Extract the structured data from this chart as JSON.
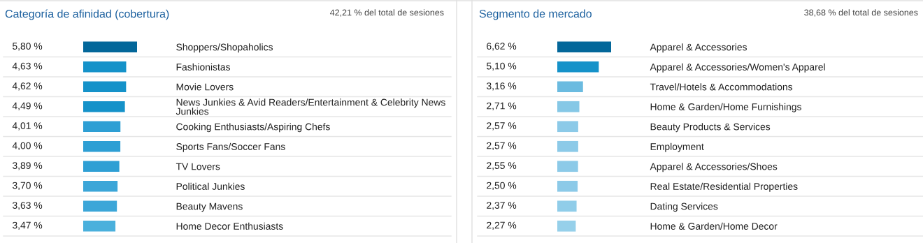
{
  "chart_data": [
    {
      "type": "bar",
      "orientation": "horizontal",
      "title": "Categoría de afinidad (cobertura)",
      "annotations": [
        "42,21 % del total de sesiones"
      ],
      "categories": [
        "Shoppers/Shopaholics",
        "Fashionistas",
        "Movie Lovers",
        "News Junkies & Avid Readers/Entertainment & Celebrity News Junkies",
        "Cooking Enthusiasts/Aspiring Chefs",
        "Sports Fans/Soccer Fans",
        "TV Lovers",
        "Political Junkies",
        "Beauty Mavens",
        "Home Decor Enthusiasts"
      ],
      "values": [
        5.8,
        4.63,
        4.62,
        4.49,
        4.01,
        4.0,
        3.89,
        3.7,
        3.63,
        3.47
      ],
      "value_labels": [
        "5,80 %",
        "4,63 %",
        "4,62 %",
        "4,49 %",
        "4,01 %",
        "4,00 %",
        "3,89 %",
        "3,70 %",
        "3,63 %",
        "3,47 %"
      ],
      "colors": [
        "#03679a",
        "#1592c9",
        "#1592c9",
        "#1592c9",
        "#2e9fd4",
        "#2e9fd4",
        "#2e9fd4",
        "#3ca6d8",
        "#3ca6d8",
        "#4ab0dc"
      ],
      "xlim": [
        0,
        5.8
      ],
      "tick_labels": "y"
    },
    {
      "type": "bar",
      "orientation": "horizontal",
      "title": "Segmento de mercado",
      "annotations": [
        "38,68 % del total de sesiones"
      ],
      "categories": [
        "Apparel & Accessories",
        "Apparel & Accessories/Women's Apparel",
        "Travel/Hotels & Accommodations",
        "Home & Garden/Home Furnishings",
        "Beauty Products & Services",
        "Employment",
        "Apparel & Accessories/Shoes",
        "Real Estate/Residential Properties",
        "Dating Services",
        "Home & Garden/Home Decor"
      ],
      "values": [
        6.62,
        5.1,
        3.16,
        2.71,
        2.57,
        2.57,
        2.55,
        2.5,
        2.37,
        2.27
      ],
      "value_labels": [
        "6,62 %",
        "5,10 %",
        "3,16 %",
        "2,71 %",
        "2,57 %",
        "2,57 %",
        "2,55 %",
        "2,50 %",
        "2,37 %",
        "2,27 %"
      ],
      "colors": [
        "#03679a",
        "#1592c9",
        "#6bbbe0",
        "#86c8e6",
        "#8ccae8",
        "#8ccae8",
        "#8ccae8",
        "#8ccae8",
        "#90cde9",
        "#96d0ea"
      ],
      "xlim": [
        0,
        6.62
      ],
      "tick_labels": "y"
    }
  ]
}
